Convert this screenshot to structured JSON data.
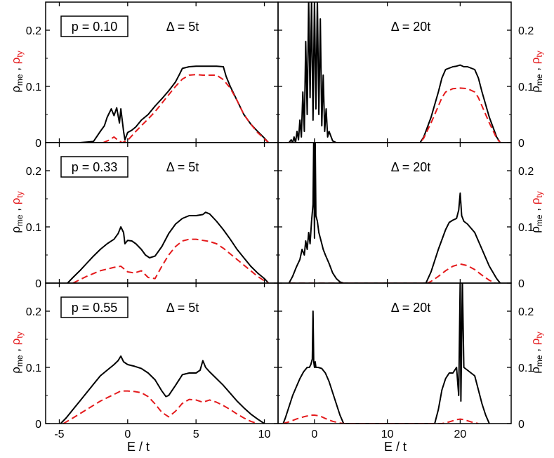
{
  "figure": {
    "xlabel": "E / t",
    "ylabel_prefix": "ρ",
    "ylabel_me_sub": "me",
    "ylabel_sep": " , ",
    "ylabel_ty_prefix": "ρ",
    "ylabel_ty_sub": "ty",
    "ylabel_me_color": "#000000",
    "ylabel_ty_color": "#e41a1c"
  },
  "chart_data": [
    {
      "type": "line",
      "row": 0,
      "col": 0,
      "p_label": "p = 0.10",
      "delta_label": "Δ = 5t",
      "xlim": [
        -6,
        11
      ],
      "ylim": [
        0,
        0.25
      ],
      "x_ticks": [
        -5,
        0,
        5,
        10
      ],
      "y_ticks": [
        0,
        0.1,
        0.2
      ],
      "y_tick_labels": [
        "0",
        "0.1",
        "0.2"
      ],
      "series": [
        {
          "style": "solid",
          "color": "#000000",
          "x": [
            -3.5,
            -2.5,
            -2.0,
            -1.7,
            -1.5,
            -1.2,
            -1.0,
            -0.8,
            -0.6,
            -0.5,
            -0.3,
            -0.2,
            0.0,
            0.3,
            0.6,
            1.0,
            1.5,
            2.0,
            2.5,
            3.0,
            3.5,
            3.8,
            4.0,
            4.5,
            5.0,
            6.0,
            6.5,
            7.0,
            7.2,
            7.5,
            8.0,
            8.5,
            9.0,
            9.5,
            10.0,
            10.3
          ],
          "y": [
            0,
            0.002,
            0.02,
            0.03,
            0.045,
            0.06,
            0.048,
            0.062,
            0.035,
            0.06,
            0.02,
            0.005,
            0.018,
            0.022,
            0.028,
            0.04,
            0.05,
            0.065,
            0.078,
            0.092,
            0.108,
            0.122,
            0.132,
            0.135,
            0.136,
            0.136,
            0.136,
            0.135,
            0.118,
            0.1,
            0.075,
            0.05,
            0.033,
            0.02,
            0.008,
            0
          ]
        },
        {
          "style": "dashed",
          "color": "#e41a1c",
          "x": [
            -1.8,
            -1.4,
            -1.0,
            -0.7,
            -0.4,
            0.0,
            0.3,
            0.6,
            1.0,
            1.5,
            2.0,
            2.5,
            3.0,
            3.5,
            4.0,
            4.5,
            5.0,
            5.5,
            6.0,
            6.5,
            7.0,
            7.5,
            8.0,
            8.5,
            9.0,
            9.5,
            10.0,
            10.3
          ],
          "y": [
            0,
            0.004,
            0.01,
            0.004,
            0.0,
            0.004,
            0.012,
            0.02,
            0.03,
            0.042,
            0.055,
            0.07,
            0.085,
            0.1,
            0.113,
            0.12,
            0.121,
            0.12,
            0.12,
            0.12,
            0.112,
            0.097,
            0.075,
            0.05,
            0.033,
            0.018,
            0.007,
            0
          ]
        }
      ]
    },
    {
      "type": "line",
      "row": 0,
      "col": 1,
      "p_label": "",
      "delta_label": "Δ = 20t",
      "xlim": [
        -5,
        27
      ],
      "ylim": [
        0,
        0.25
      ],
      "x_ticks": [
        0,
        10,
        20
      ],
      "y_ticks": [
        0,
        0.1,
        0.2
      ],
      "y_tick_labels": [
        "0",
        "0.1",
        "0.2"
      ],
      "series": [
        {
          "style": "solid",
          "color": "#000000",
          "x": [
            -4.0,
            -3.5,
            -3.2,
            -3.0,
            -2.8,
            -2.6,
            -2.4,
            -2.2,
            -2.0,
            -1.8,
            -1.6,
            -1.4,
            -1.2,
            -1.0,
            -0.8,
            -0.6,
            -0.4,
            -0.2,
            0.0,
            0.2,
            0.4,
            0.6,
            0.8,
            1.0,
            1.2,
            1.4,
            1.6,
            1.8,
            2.0,
            2.5,
            3.0,
            14.5,
            15.0,
            16.0,
            17.0,
            17.5,
            18.0,
            19.0,
            19.5,
            20.0,
            20.5,
            21.0,
            22.0,
            22.5,
            23.0,
            24.0,
            25.0,
            25.5
          ],
          "y": [
            0,
            0.0,
            0.005,
            0.0,
            0.01,
            0.0,
            0.02,
            0.005,
            0.04,
            0.01,
            0.09,
            0.02,
            0.18,
            0.05,
            0.26,
            0.08,
            0.26,
            0.04,
            0.26,
            0.06,
            0.26,
            0.05,
            0.22,
            0.03,
            0.12,
            0.02,
            0.06,
            0.01,
            0.02,
            0.003,
            0,
            0,
            0.01,
            0.045,
            0.09,
            0.115,
            0.13,
            0.135,
            0.136,
            0.138,
            0.135,
            0.135,
            0.13,
            0.115,
            0.09,
            0.045,
            0.01,
            0
          ]
        },
        {
          "style": "dashed",
          "color": "#e41a1c",
          "x": [
            -4.0,
            3.0,
            14.5,
            15.0,
            16.0,
            17.0,
            17.5,
            18.0,
            19.0,
            20.0,
            21.0,
            22.0,
            22.5,
            23.0,
            24.0,
            25.0,
            25.5
          ],
          "y": [
            0,
            0,
            0,
            0.008,
            0.035,
            0.065,
            0.08,
            0.09,
            0.096,
            0.097,
            0.096,
            0.09,
            0.08,
            0.065,
            0.035,
            0.008,
            0
          ]
        }
      ]
    },
    {
      "type": "line",
      "row": 1,
      "col": 0,
      "p_label": "p = 0.33",
      "delta_label": "Δ = 5t",
      "xlim": [
        -6,
        11
      ],
      "ylim": [
        0,
        0.25
      ],
      "x_ticks": [
        -5,
        0,
        5,
        10
      ],
      "y_ticks": [
        0,
        0.1,
        0.2
      ],
      "y_tick_labels": [
        "0",
        "0.1",
        "0.2"
      ],
      "series": [
        {
          "style": "solid",
          "color": "#000000",
          "x": [
            -4.4,
            -4.0,
            -3.5,
            -3.0,
            -2.5,
            -2.0,
            -1.5,
            -1.0,
            -0.7,
            -0.5,
            -0.3,
            -0.2,
            0.0,
            0.3,
            0.6,
            1.0,
            1.3,
            1.6,
            2.0,
            2.5,
            3.0,
            3.5,
            4.0,
            4.5,
            5.0,
            5.5,
            5.7,
            6.0,
            6.5,
            7.0,
            7.5,
            8.0,
            8.5,
            9.0,
            9.5,
            10.0,
            10.3
          ],
          "y": [
            0,
            0.01,
            0.022,
            0.035,
            0.048,
            0.06,
            0.07,
            0.078,
            0.088,
            0.1,
            0.09,
            0.07,
            0.076,
            0.075,
            0.07,
            0.06,
            0.05,
            0.045,
            0.048,
            0.065,
            0.088,
            0.105,
            0.115,
            0.12,
            0.12,
            0.122,
            0.126,
            0.123,
            0.11,
            0.095,
            0.078,
            0.06,
            0.045,
            0.03,
            0.018,
            0.008,
            0
          ]
        },
        {
          "style": "dashed",
          "color": "#e41a1c",
          "x": [
            -4.0,
            -3.0,
            -2.0,
            -1.0,
            -0.5,
            0.0,
            0.5,
            1.0,
            1.5,
            2.0,
            2.5,
            3.0,
            3.5,
            4.0,
            4.5,
            5.0,
            5.5,
            6.0,
            6.5,
            7.0,
            7.5,
            8.0,
            8.5,
            9.0,
            9.5,
            10.0,
            10.3
          ],
          "y": [
            0,
            0.012,
            0.022,
            0.028,
            0.03,
            0.02,
            0.018,
            0.022,
            0.01,
            0.008,
            0.03,
            0.05,
            0.065,
            0.075,
            0.078,
            0.078,
            0.076,
            0.074,
            0.07,
            0.062,
            0.052,
            0.042,
            0.032,
            0.022,
            0.012,
            0.004,
            0
          ]
        }
      ]
    },
    {
      "type": "line",
      "row": 1,
      "col": 1,
      "p_label": "",
      "delta_label": "Δ = 20t",
      "xlim": [
        -5,
        27
      ],
      "ylim": [
        0,
        0.25
      ],
      "x_ticks": [
        0,
        10,
        20
      ],
      "y_ticks": [
        0,
        0.1,
        0.2
      ],
      "y_tick_labels": [
        "0",
        "0.1",
        "0.2"
      ],
      "series": [
        {
          "style": "solid",
          "color": "#000000",
          "x": [
            -3.5,
            -3.0,
            -2.5,
            -2.0,
            -1.7,
            -1.4,
            -1.2,
            -1.0,
            -0.8,
            -0.6,
            -0.4,
            -0.2,
            -0.1,
            0.0,
            0.1,
            0.2,
            0.4,
            0.6,
            0.8,
            1.0,
            1.2,
            1.5,
            2.0,
            2.5,
            3.0,
            3.5,
            4.0,
            15.3,
            16.0,
            17.0,
            18.0,
            18.5,
            19.0,
            19.5,
            19.8,
            20.0,
            20.2,
            20.5,
            21.0,
            22.0,
            23.0,
            24.0,
            25.0,
            25.5
          ],
          "y": [
            0,
            0.012,
            0.028,
            0.042,
            0.06,
            0.05,
            0.075,
            0.06,
            0.09,
            0.07,
            0.11,
            0.14,
            0.26,
            0.08,
            0.26,
            0.12,
            0.11,
            0.09,
            0.08,
            0.07,
            0.06,
            0.05,
            0.035,
            0.018,
            0.008,
            0.002,
            0,
            0,
            0.02,
            0.06,
            0.095,
            0.108,
            0.112,
            0.115,
            0.13,
            0.16,
            0.12,
            0.11,
            0.105,
            0.09,
            0.06,
            0.03,
            0.008,
            0
          ]
        },
        {
          "style": "dashed",
          "color": "#e41a1c",
          "x": [
            -3.5,
            4.0,
            15.5,
            16.0,
            17.0,
            18.0,
            19.0,
            20.0,
            21.0,
            22.0,
            23.0,
            24.0,
            24.8
          ],
          "y": [
            0,
            0,
            0,
            0.003,
            0.012,
            0.022,
            0.03,
            0.034,
            0.031,
            0.024,
            0.014,
            0.005,
            0
          ]
        }
      ]
    },
    {
      "type": "line",
      "row": 2,
      "col": 0,
      "p_label": "p = 0.55",
      "delta_label": "Δ = 5t",
      "xlim": [
        -6,
        11
      ],
      "ylim": [
        0,
        0.25
      ],
      "x_ticks": [
        -5,
        0,
        5,
        10
      ],
      "y_ticks": [
        0,
        0.1,
        0.2
      ],
      "y_tick_labels": [
        "0",
        "0.1",
        "0.2"
      ],
      "series": [
        {
          "style": "solid",
          "color": "#000000",
          "x": [
            -4.9,
            -4.5,
            -4.0,
            -3.5,
            -3.0,
            -2.5,
            -2.0,
            -1.5,
            -1.0,
            -0.7,
            -0.5,
            -0.3,
            0.0,
            0.5,
            1.0,
            1.5,
            2.0,
            2.5,
            2.8,
            3.0,
            3.5,
            4.0,
            4.5,
            5.0,
            5.3,
            5.5,
            5.7,
            6.0,
            6.5,
            7.0,
            7.5,
            8.0,
            8.5,
            9.0,
            9.5,
            10.0
          ],
          "y": [
            0,
            0.01,
            0.025,
            0.04,
            0.055,
            0.07,
            0.085,
            0.095,
            0.105,
            0.112,
            0.12,
            0.11,
            0.105,
            0.102,
            0.098,
            0.09,
            0.078,
            0.058,
            0.048,
            0.05,
            0.068,
            0.087,
            0.09,
            0.09,
            0.095,
            0.112,
            0.1,
            0.092,
            0.08,
            0.068,
            0.054,
            0.04,
            0.028,
            0.017,
            0.008,
            0
          ]
        },
        {
          "style": "dashed",
          "color": "#e41a1c",
          "x": [
            -4.7,
            -4.0,
            -3.0,
            -2.0,
            -1.0,
            -0.5,
            0.0,
            0.5,
            1.0,
            1.5,
            2.0,
            2.5,
            3.0,
            3.5,
            4.0,
            4.5,
            5.0,
            5.5,
            6.0,
            6.5,
            7.0,
            7.5,
            8.0,
            8.5,
            9.0,
            9.5
          ],
          "y": [
            0,
            0.01,
            0.025,
            0.04,
            0.052,
            0.058,
            0.058,
            0.057,
            0.055,
            0.048,
            0.035,
            0.02,
            0.012,
            0.022,
            0.036,
            0.043,
            0.042,
            0.038,
            0.042,
            0.038,
            0.032,
            0.025,
            0.017,
            0.01,
            0.004,
            0
          ]
        }
      ]
    },
    {
      "type": "line",
      "row": 2,
      "col": 1,
      "p_label": "",
      "delta_label": "Δ = 20t",
      "xlim": [
        -5,
        27
      ],
      "ylim": [
        0,
        0.25
      ],
      "x_ticks": [
        0,
        10,
        20
      ],
      "y_ticks": [
        0,
        0.1,
        0.2
      ],
      "y_tick_labels": [
        "0",
        "0.1",
        "0.2"
      ],
      "series": [
        {
          "style": "solid",
          "color": "#000000",
          "x": [
            -4.3,
            -4.0,
            -3.5,
            -3.0,
            -2.5,
            -2.0,
            -1.5,
            -1.0,
            -0.7,
            -0.5,
            -0.3,
            -0.2,
            -0.1,
            0.0,
            0.1,
            0.2,
            0.3,
            0.5,
            1.0,
            1.5,
            2.0,
            2.5,
            3.0,
            3.5,
            4.0,
            16.5,
            17.0,
            17.5,
            18.0,
            18.5,
            19.0,
            19.5,
            19.8,
            20.0,
            20.1,
            20.3,
            20.5,
            21.0,
            21.5,
            22.0,
            22.5,
            23.0,
            23.5,
            24.0
          ],
          "y": [
            0,
            0.01,
            0.03,
            0.05,
            0.065,
            0.08,
            0.092,
            0.1,
            0.1,
            0.105,
            0.115,
            0.2,
            0.11,
            0.1,
            0.11,
            0.1,
            0.1,
            0.1,
            0.098,
            0.09,
            0.075,
            0.055,
            0.035,
            0.015,
            0,
            0,
            0.025,
            0.06,
            0.08,
            0.09,
            0.09,
            0.1,
            0.05,
            0.26,
            0.04,
            0.26,
            0.1,
            0.095,
            0.09,
            0.085,
            0.06,
            0.035,
            0.015,
            0
          ]
        },
        {
          "style": "dashed",
          "color": "#e41a1c",
          "x": [
            -4.3,
            -3.5,
            -2.5,
            -1.5,
            -0.5,
            0.0,
            0.5,
            1.0,
            1.5,
            2.5,
            3.5,
            4.0,
            17.5,
            18.5,
            19.5,
            20.0,
            20.5,
            21.5,
            22.5
          ],
          "y": [
            0,
            0.003,
            0.008,
            0.012,
            0.015,
            0.015,
            0.014,
            0.012,
            0.009,
            0.004,
            0.001,
            0,
            0,
            0.003,
            0.007,
            0.008,
            0.007,
            0.003,
            0
          ]
        }
      ]
    }
  ]
}
